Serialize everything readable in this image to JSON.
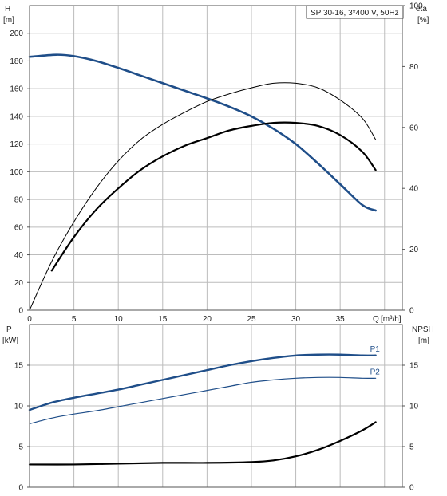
{
  "chart_data": [
    {
      "type": "line",
      "panel": "top",
      "legend": "SP 30-16, 3*400 V, 50Hz",
      "legend_position": "top-right",
      "grid": true,
      "ylabel_left": "H",
      "yunit_left": "[m]",
      "ylabel_right": "eta",
      "yunit_right": "[%]",
      "xlabel": "Q",
      "xunit": "[m³/h]",
      "xlim": [
        0,
        42
      ],
      "ylim": [
        0,
        220
      ],
      "y2lim": [
        0,
        100
      ],
      "xticks": [
        "0",
        "5",
        "10",
        "15",
        "20",
        "25",
        "30",
        "35"
      ],
      "yticks_left": [
        "0",
        "20",
        "40",
        "60",
        "80",
        "100",
        "120",
        "140",
        "160",
        "180",
        "200"
      ],
      "yticks_right": [
        "0",
        "20",
        "40",
        "60",
        "80",
        "100"
      ],
      "series": [
        {
          "id": "head",
          "color": "#1f4e89",
          "width": 2.6,
          "axis": "left",
          "x": [
            0,
            3,
            5,
            7.5,
            10,
            12.5,
            15,
            17.5,
            20,
            22.5,
            25,
            27.5,
            30,
            32.5,
            35,
            37.5,
            39
          ],
          "y": [
            183,
            184.5,
            183.5,
            180,
            175,
            169.5,
            164,
            158.5,
            153,
            147,
            140,
            131,
            120,
            106,
            91,
            76,
            72
          ]
        },
        {
          "id": "eta-total",
          "color": "#000000",
          "width": 1.0,
          "axis": "right",
          "x": [
            0,
            2.5,
            5,
            7.5,
            10,
            12.5,
            15,
            17.5,
            20,
            22.5,
            25,
            27.5,
            30,
            32.5,
            35,
            37.5,
            39
          ],
          "y": [
            0,
            16,
            29,
            40,
            49,
            56,
            61,
            65,
            68.5,
            71,
            73,
            74.5,
            74.5,
            73,
            69,
            63,
            56
          ]
        },
        {
          "id": "eta-pump",
          "color": "#000000",
          "width": 2.2,
          "axis": "right",
          "x": [
            2.5,
            5,
            7.5,
            10,
            12.5,
            15,
            17.5,
            20,
            22.5,
            25,
            27.5,
            30,
            32.5,
            35,
            37.5,
            39
          ],
          "y": [
            13,
            24,
            33,
            40,
            46,
            50.5,
            54,
            56.5,
            59,
            60.5,
            61.5,
            61.5,
            60.5,
            57.5,
            52,
            46
          ]
        }
      ]
    },
    {
      "type": "line",
      "panel": "bottom",
      "grid": true,
      "ylabel_left": "P",
      "yunit_left": "[kW]",
      "ylabel_right": "NPSH",
      "yunit_right": "[m]",
      "xlim": [
        0,
        42
      ],
      "ylim": [
        0,
        20
      ],
      "y2lim": [
        0,
        20
      ],
      "yticks_left": [
        "0",
        "5",
        "10",
        "15"
      ],
      "yticks_right": [
        "0",
        "5",
        "10",
        "15"
      ],
      "series": [
        {
          "id": "p1",
          "name": "P1",
          "color": "#1f4e89",
          "width": 2.4,
          "axis": "left",
          "x": [
            0,
            2.5,
            5,
            7.5,
            10,
            12.5,
            15,
            17.5,
            20,
            22.5,
            25,
            27.5,
            30,
            32.5,
            35,
            37.5,
            39
          ],
          "y": [
            9.5,
            10.4,
            11,
            11.5,
            12,
            12.6,
            13.2,
            13.8,
            14.4,
            15,
            15.5,
            15.9,
            16.2,
            16.3,
            16.3,
            16.2,
            16.2
          ]
        },
        {
          "id": "p2",
          "name": "P2",
          "color": "#1f4e89",
          "width": 1.2,
          "axis": "left",
          "x": [
            0,
            2.5,
            5,
            7.5,
            10,
            12.5,
            15,
            17.5,
            20,
            22.5,
            25,
            27.5,
            30,
            32.5,
            35,
            37.5,
            39
          ],
          "y": [
            7.8,
            8.5,
            9.0,
            9.4,
            9.9,
            10.4,
            10.9,
            11.4,
            11.9,
            12.4,
            12.9,
            13.2,
            13.4,
            13.5,
            13.5,
            13.4,
            13.4
          ]
        },
        {
          "id": "npsh",
          "color": "#000000",
          "width": 2.2,
          "axis": "right",
          "x": [
            0,
            5,
            10,
            15,
            20,
            25,
            27.5,
            30,
            32.5,
            35,
            37.5,
            39
          ],
          "y": [
            2.8,
            2.8,
            2.9,
            3.0,
            3.0,
            3.1,
            3.3,
            3.8,
            4.6,
            5.7,
            7.0,
            8.0
          ]
        }
      ]
    }
  ]
}
